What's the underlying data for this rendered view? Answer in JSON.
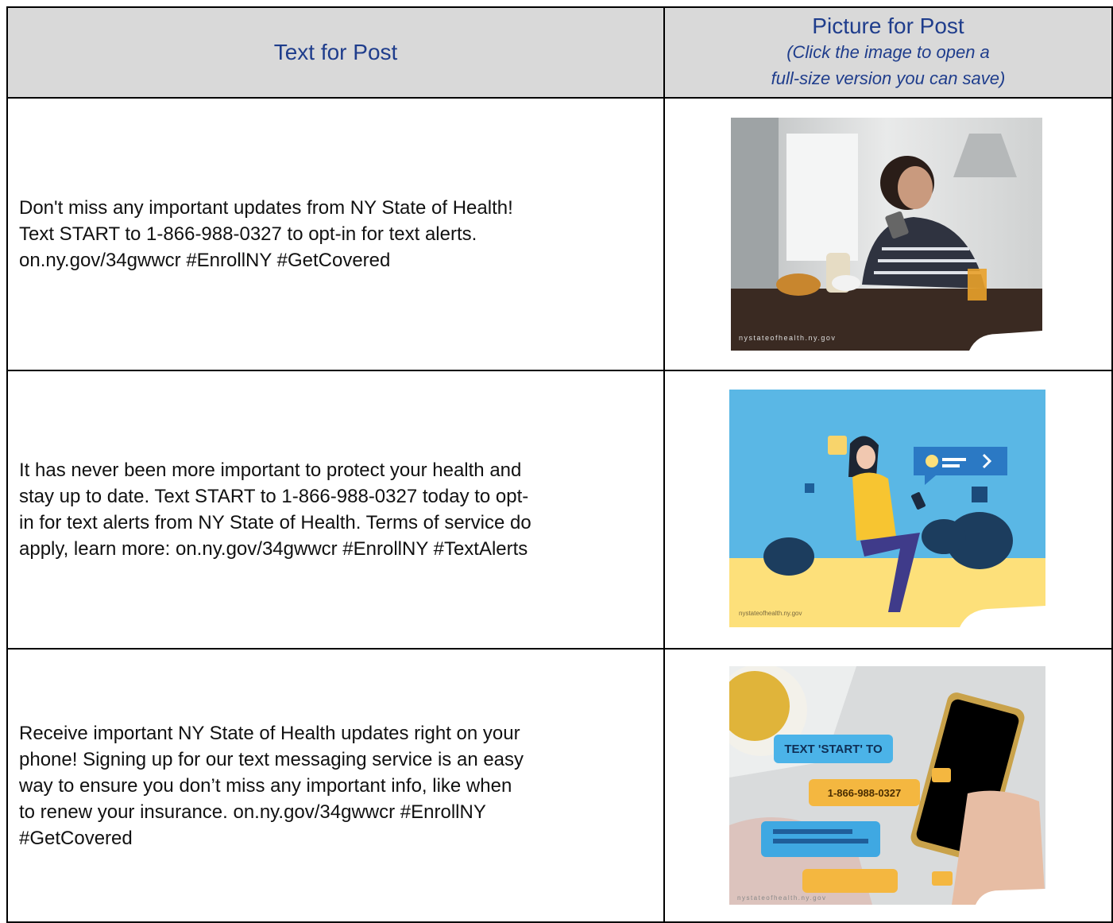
{
  "table": {
    "header": {
      "text_col": "Text for Post",
      "picture_col": {
        "title": "Picture for Post",
        "note": [
          "(Click the image to open a",
          "full-size version you can save)"
        ]
      }
    },
    "rows": [
      {
        "text": [
          "Don't miss any important updates from NY State of Health!",
          "Text START to 1-866-988-0327  to opt-in for text alerts.",
          "on.ny.gov/34gwwcr #EnrollNY #GetCovered"
        ],
        "image": {
          "watermark": "nystateofhealth.ny.gov"
        }
      },
      {
        "text": [
          "It has never been more important to protect your health and",
          "stay up to date. Text START to 1-866-988-0327  today to opt-",
          "in for text alerts from NY State of Health. Terms of service do",
          "apply, learn more: on.ny.gov/34gwwcr #EnrollNY #TextAlerts"
        ],
        "image": {
          "watermark": "nystateofhealth.ny.gov"
        }
      },
      {
        "text": [
          "Receive important NY State of Health updates right on your",
          "phone! Signing up for our text messaging service is an easy",
          "way to ensure you don’t miss any important info, like when",
          "to renew your insurance. on.ny.gov/34gwwcr #EnrollNY",
          "#GetCovered"
        ],
        "image": {
          "watermark": "nystateofhealth.ny.gov",
          "callouts": [
            "TEXT 'START' TO",
            "1-866-988-0327"
          ]
        }
      }
    ]
  }
}
